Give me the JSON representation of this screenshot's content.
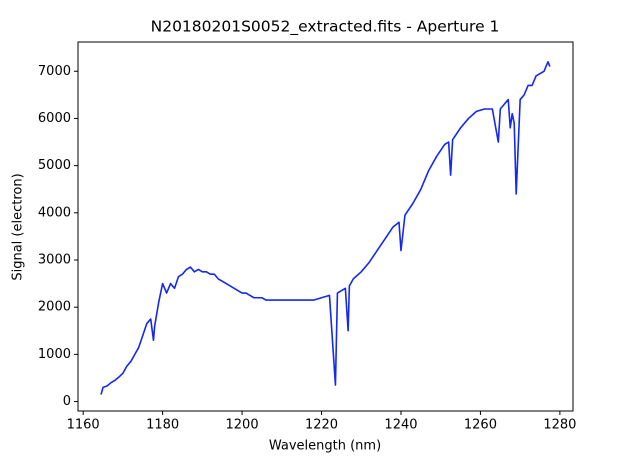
{
  "chart_data": {
    "type": "line",
    "title": "N20180201S0052_extracted.fits - Aperture 1",
    "x_label": "Wavelength (nm)",
    "y_label": "Signal (electron)",
    "xlim": [
      1158.7,
      1283.3
    ],
    "ylim": [
      -200,
      7620
    ],
    "xticks": [
      1160,
      1180,
      1200,
      1220,
      1240,
      1260,
      1280
    ],
    "yticks": [
      0,
      1000,
      2000,
      3000,
      4000,
      5000,
      6000,
      7000
    ],
    "grid": false,
    "x": [
      1164.5,
      1165,
      1166,
      1167,
      1168,
      1169,
      1170,
      1171,
      1172,
      1173,
      1174,
      1175,
      1176,
      1177,
      1177.7,
      1178,
      1179,
      1180,
      1181,
      1182,
      1183,
      1184,
      1185,
      1186,
      1187,
      1188,
      1189,
      1190,
      1191,
      1192,
      1193,
      1194,
      1195,
      1196,
      1197,
      1198,
      1199,
      1200,
      1201,
      1202,
      1203,
      1204,
      1205,
      1206,
      1208,
      1210,
      1212,
      1214,
      1216,
      1218,
      1220,
      1222,
      1223.5,
      1224,
      1226,
      1226.7,
      1227,
      1228,
      1230,
      1232,
      1234,
      1236,
      1238,
      1239.5,
      1240,
      1241,
      1243,
      1245,
      1247,
      1249,
      1251,
      1252,
      1252.5,
      1253,
      1255,
      1257,
      1259,
      1261,
      1263,
      1264.5,
      1265,
      1266,
      1267,
      1267.5,
      1268,
      1268.5,
      1269,
      1270,
      1271,
      1272,
      1273,
      1274,
      1275,
      1276,
      1277,
      1277.5
    ],
    "series": [
      {
        "name": "Aperture 1",
        "color": "#1428f0",
        "values": [
          150,
          300,
          330,
          400,
          450,
          520,
          600,
          750,
          850,
          1000,
          1150,
          1400,
          1650,
          1750,
          1300,
          1600,
          2100,
          2500,
          2300,
          2500,
          2400,
          2650,
          2700,
          2800,
          2850,
          2750,
          2800,
          2750,
          2750,
          2700,
          2700,
          2600,
          2550,
          2500,
          2450,
          2400,
          2350,
          2300,
          2300,
          2250,
          2200,
          2200,
          2200,
          2150,
          2150,
          2150,
          2150,
          2150,
          2150,
          2150,
          2200,
          2250,
          350,
          2300,
          2400,
          1500,
          2450,
          2600,
          2750,
          2950,
          3200,
          3450,
          3700,
          3800,
          3200,
          3950,
          4200,
          4500,
          4900,
          5200,
          5450,
          5500,
          4800,
          5550,
          5800,
          6000,
          6150,
          6200,
          6200,
          5500,
          6200,
          6300,
          6400,
          5800,
          6100,
          5900,
          4400,
          6400,
          6500,
          6700,
          6700,
          6900,
          6950,
          7000,
          7200,
          7100
        ]
      }
    ]
  }
}
